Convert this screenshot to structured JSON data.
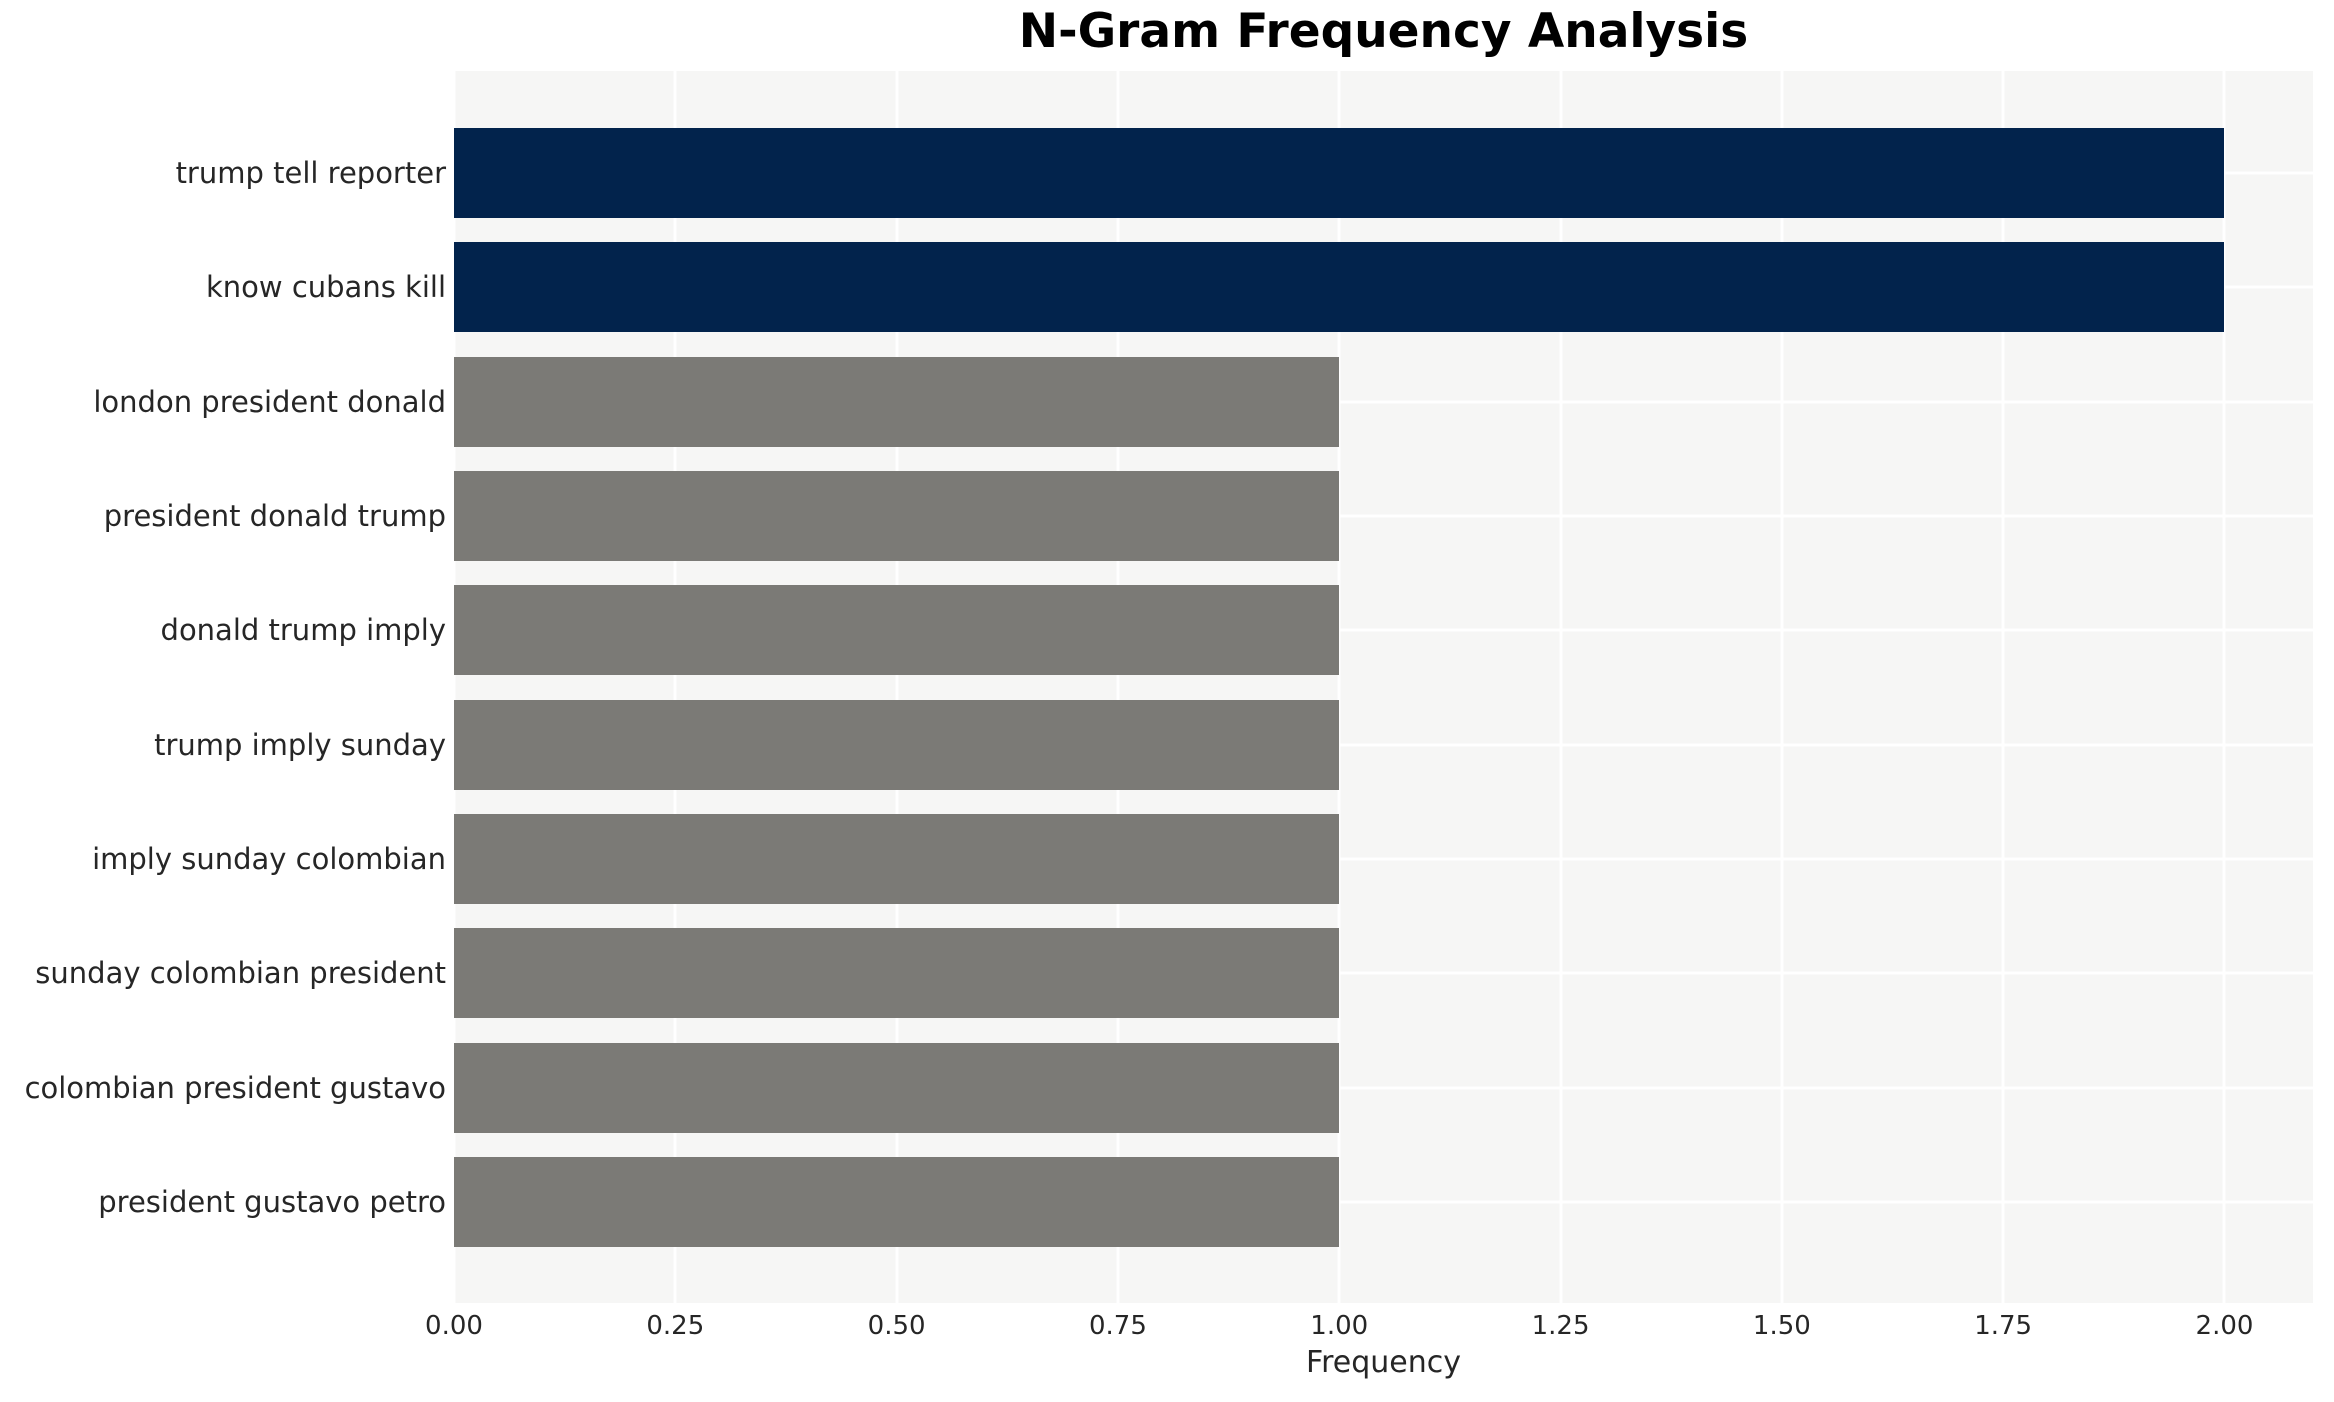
{
  "chart_data": {
    "type": "bar",
    "orientation": "horizontal",
    "title": "N-Gram Frequency Analysis",
    "xlabel": "Frequency",
    "ylabel": "",
    "categories": [
      "trump tell reporter",
      "know cubans kill",
      "london president donald",
      "president donald trump",
      "donald trump imply",
      "trump imply sunday",
      "imply sunday colombian",
      "sunday colombian president",
      "colombian president gustavo",
      "president gustavo petro"
    ],
    "values": [
      2,
      2,
      1,
      1,
      1,
      1,
      1,
      1,
      1,
      1
    ],
    "colors": [
      "#02234c",
      "#02234c",
      "#7b7a76",
      "#7b7a76",
      "#7b7a76",
      "#7b7a76",
      "#7b7a76",
      "#7b7a76",
      "#7b7a76",
      "#7b7a76"
    ],
    "xlim": [
      0,
      2.1
    ],
    "tick_values": [
      0,
      0.25,
      0.5,
      0.75,
      1.0,
      1.25,
      1.5,
      1.75,
      2.0
    ],
    "tick_labels": [
      "0.00",
      "0.25",
      "0.50",
      "0.75",
      "1.00",
      "1.25",
      "1.50",
      "1.75",
      "2.00"
    ],
    "plot_background_color": "#f6f6f5",
    "grid_color": "#ffffff",
    "grid": "on",
    "legend": "none"
  }
}
